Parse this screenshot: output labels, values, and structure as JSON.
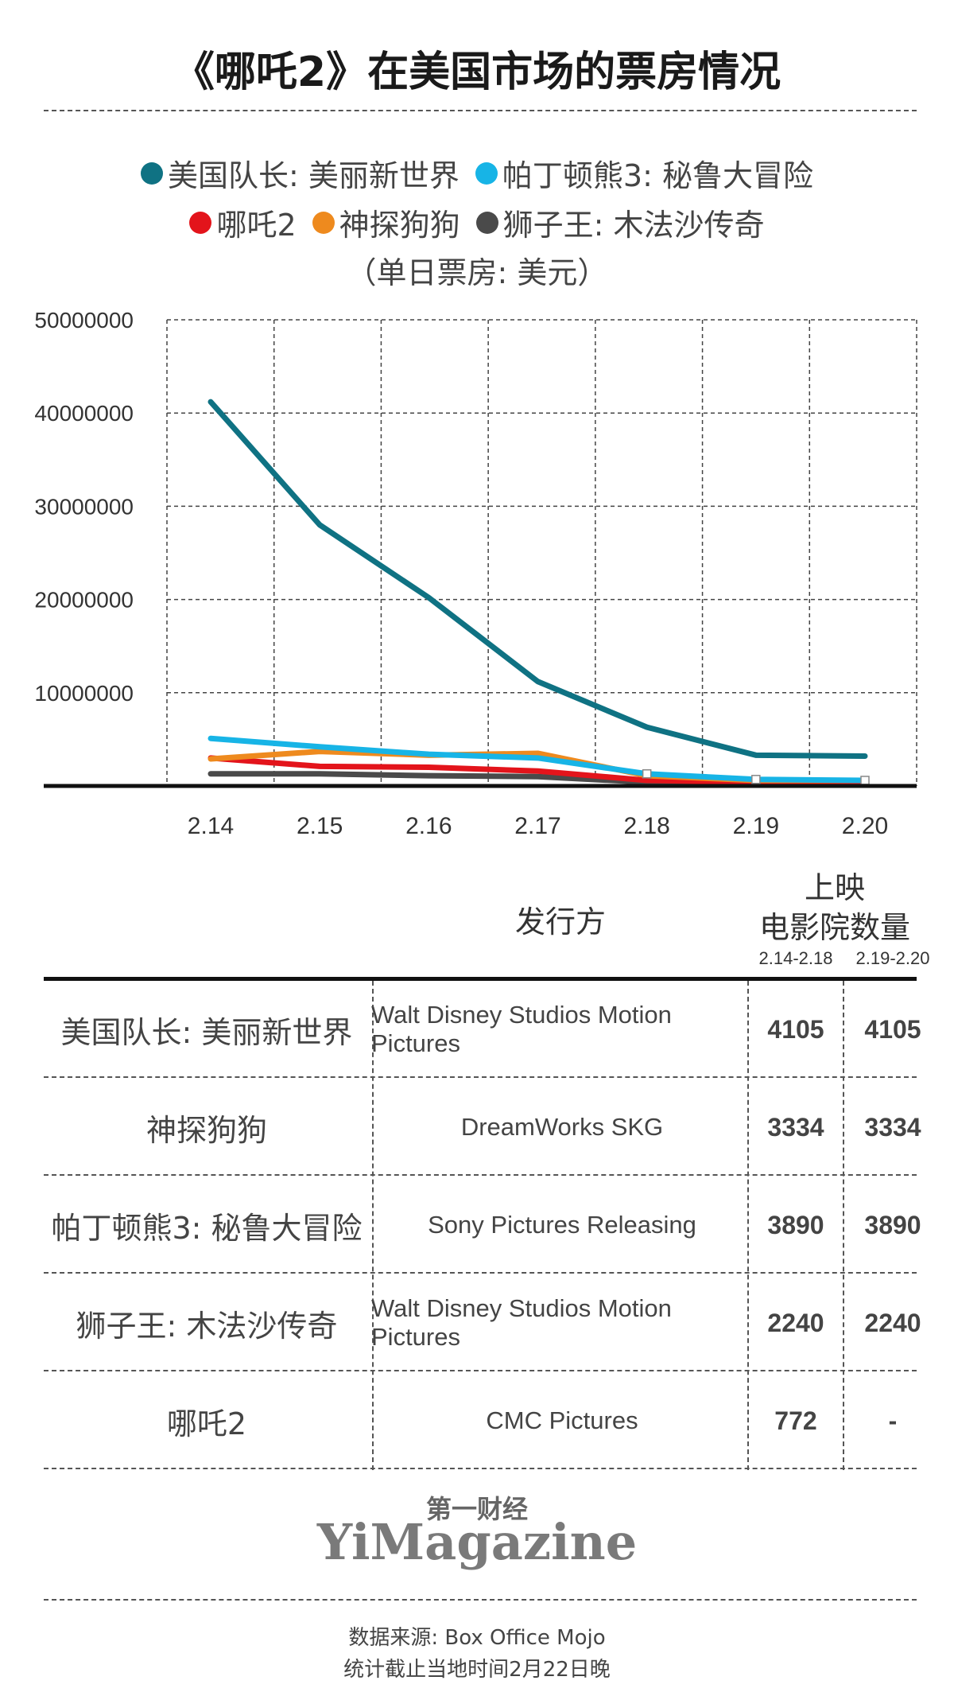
{
  "title": "《哪吒2》在美国市场的票房情况",
  "legend": {
    "row1": [
      {
        "label": "美国队长: 美丽新世界",
        "color": "#0f7283"
      },
      {
        "label": "帕丁顿熊3: 秘鲁大冒险",
        "color": "#17b4e6"
      }
    ],
    "row2": [
      {
        "label": "哪吒2",
        "color": "#e3141b"
      },
      {
        "label": "神探狗狗",
        "color": "#ee8a1e"
      },
      {
        "label": "狮子王: 木法沙传奇",
        "color": "#4a4a4a"
      }
    ],
    "unit": "（单日票房: 美元）"
  },
  "chart_data": {
    "type": "line",
    "x": [
      "2.14",
      "2.15",
      "2.16",
      "2.17",
      "2.18",
      "2.19",
      "2.20"
    ],
    "y_ticks": [
      "10000000",
      "20000000",
      "30000000",
      "40000000",
      "50000000"
    ],
    "ylim": [
      0,
      50000000
    ],
    "grid": true,
    "legend_position": "top",
    "series": [
      {
        "name": "美国队长: 美丽新世界",
        "color": "#0f7283",
        "values": [
          41200000,
          28000000,
          20200000,
          11200000,
          6300000,
          3300000,
          3200000
        ]
      },
      {
        "name": "帕丁顿熊3: 秘鲁大冒险",
        "color": "#17b4e6",
        "values": [
          5100000,
          4200000,
          3400000,
          3000000,
          1300000,
          700000,
          600000
        ]
      },
      {
        "name": "神探狗狗",
        "color": "#ee8a1e",
        "values": [
          2900000,
          3700000,
          3300000,
          3500000,
          1100000,
          600000,
          600000
        ]
      },
      {
        "name": "哪吒2",
        "color": "#e3141b",
        "values": [
          3000000,
          2100000,
          2000000,
          1600000,
          600000,
          400000,
          300000
        ]
      },
      {
        "name": "狮子王: 木法沙传奇",
        "color": "#4a4a4a",
        "values": [
          1300000,
          1300000,
          1100000,
          1000000,
          400000,
          200000,
          200000
        ]
      }
    ]
  },
  "table": {
    "header_distributor": "发行方",
    "header_screens_line1": "上映",
    "header_screens_line2": "电影院数量",
    "period1": "2.14-2.18",
    "period2": "2.19-2.20",
    "rows": [
      {
        "name": "美国队长: 美丽新世界",
        "distributor": "Walt Disney Studios Motion Pictures",
        "n1": "4105",
        "n2": "4105"
      },
      {
        "name": "神探狗狗",
        "distributor": "DreamWorks SKG",
        "n1": "3334",
        "n2": "3334"
      },
      {
        "name": "帕丁顿熊3: 秘鲁大冒险",
        "distributor": "Sony Pictures Releasing",
        "n1": "3890",
        "n2": "3890"
      },
      {
        "name": "狮子王: 木法沙传奇",
        "distributor": "Walt Disney Studios Motion Pictures",
        "n1": "2240",
        "n2": "2240"
      },
      {
        "name": "哪吒2",
        "distributor": "CMC Pictures",
        "n1": "772",
        "n2": "-"
      }
    ]
  },
  "logo": {
    "cn": "第一财经",
    "en": "YiMagazine"
  },
  "footer": {
    "source": "数据来源: Box Office Mojo",
    "note": "统计截止当地时间2月22日晚"
  }
}
